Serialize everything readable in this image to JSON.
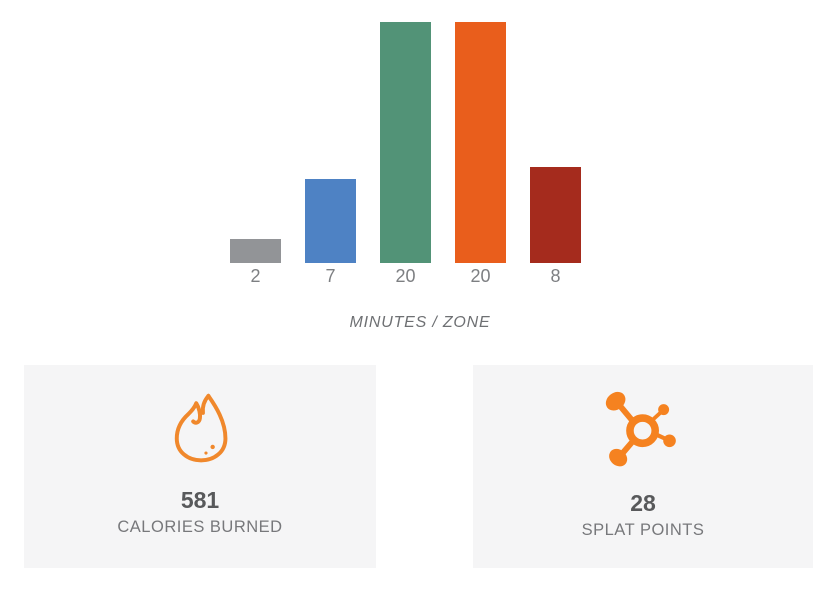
{
  "page": {
    "background": "#ffffff"
  },
  "chart_data": {
    "type": "bar",
    "title": "",
    "categories": [
      "gray",
      "blue",
      "green",
      "orange",
      "red"
    ],
    "values": [
      2,
      7,
      20,
      20,
      8
    ],
    "bar_labels": [
      "2",
      "7",
      "20",
      "20",
      "8"
    ],
    "bar_colors": [
      "#929497",
      "#4e82c4",
      "#529377",
      "#e95e1c",
      "#a52b1d"
    ],
    "xlabel": "MINUTES / ZONE",
    "ylabel": "",
    "ylim": [
      0,
      20
    ],
    "grid": false,
    "legend": "none"
  },
  "stats": {
    "calories": {
      "icon": "flame-icon",
      "value": "581",
      "label": "CALORIES BURNED"
    },
    "splats": {
      "icon": "splat-icon",
      "value": "28",
      "label": "SPLAT POINTS"
    }
  },
  "colors": {
    "accent_orange": "#f58220",
    "flame_stroke": "#f0882c",
    "card_background": "#f5f5f6",
    "value_text": "#58595b",
    "stat_label_text": "#77787b",
    "bar_label_text": "#7d7f82",
    "axis_label_text": "#6e7073"
  }
}
